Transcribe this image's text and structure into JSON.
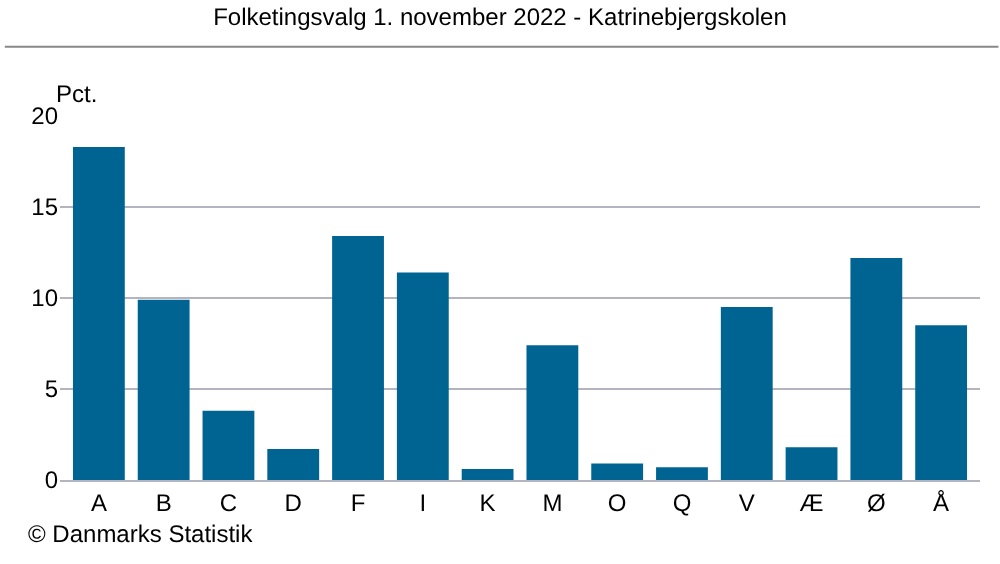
{
  "chart_data": {
    "type": "bar",
    "title": "Folketingsvalg 1. november 2022 - Katrinebjergskolen",
    "ylabel": "Pct.",
    "categories": [
      "A",
      "B",
      "C",
      "D",
      "F",
      "I",
      "K",
      "M",
      "O",
      "Q",
      "V",
      "Æ",
      "Ø",
      "Å"
    ],
    "values": [
      18.3,
      9.9,
      3.8,
      1.7,
      13.4,
      11.4,
      0.6,
      7.4,
      0.9,
      0.7,
      9.5,
      1.8,
      12.2,
      8.5
    ],
    "color": "#006493",
    "ylim": [
      0,
      20
    ],
    "yticks": [
      0,
      5,
      10,
      15,
      20
    ],
    "grid": "y",
    "annotations": [
      "© Danmarks Statistik"
    ]
  }
}
